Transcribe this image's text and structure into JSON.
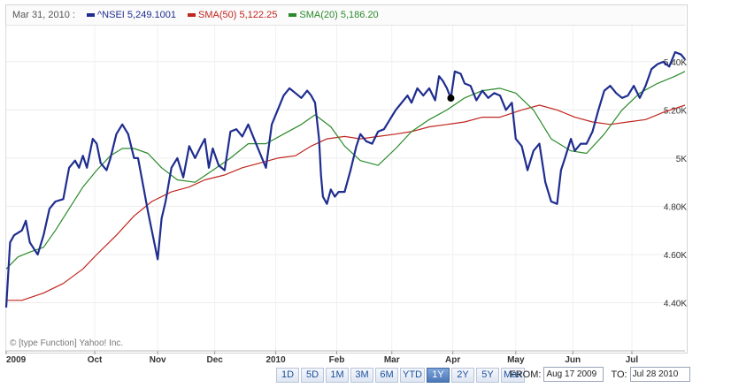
{
  "legend": {
    "date": "Mar 31, 2010 :",
    "items": [
      {
        "name": "^NSEI",
        "value": "5,249.1001",
        "color": "#1f2d8f"
      },
      {
        "name": "SMA(50)",
        "value": "5,122.25",
        "color": "#c0251e"
      },
      {
        "name": "SMA(20)",
        "value": "5,186.20",
        "color": "#2a8a2a"
      }
    ]
  },
  "copyright": "© [type Function] Yahoo! Inc.",
  "range_buttons": [
    {
      "label": "1D",
      "active": false
    },
    {
      "label": "5D",
      "active": false
    },
    {
      "label": "1M",
      "active": false
    },
    {
      "label": "3M",
      "active": false
    },
    {
      "label": "6M",
      "active": false
    },
    {
      "label": "YTD",
      "active": false
    },
    {
      "label": "1Y",
      "active": true
    },
    {
      "label": "2Y",
      "active": false
    },
    {
      "label": "5Y",
      "active": false
    },
    {
      "label": "Max",
      "active": false
    }
  ],
  "date_range": {
    "from_label": "FROM:",
    "from_value": "Aug 17 2009",
    "to_label": "TO:",
    "to_value": "Jul 28 2010"
  },
  "chart_data": {
    "type": "line",
    "title": "",
    "xlabel": "",
    "ylabel": "",
    "ylim": [
      4200,
      5550
    ],
    "grid": true,
    "legend_position": "top",
    "x_tick_labels": [
      "2009",
      "Oct",
      "Nov",
      "Dec",
      "2010",
      "Feb",
      "Mar",
      "Apr",
      "May",
      "Jun",
      "Jul"
    ],
    "y_tick_labels": [
      "4.40K",
      "4.60K",
      "4.80K",
      "5K",
      "5.20K",
      "5.40K"
    ],
    "y_ticks": [
      4400,
      4600,
      4800,
      5000,
      5200,
      5400
    ],
    "marker": {
      "series": "^NSEI",
      "date": "Mar 31, 2010",
      "value": 5249.1
    },
    "series": [
      {
        "name": "^NSEI",
        "color": "#1f2d8f",
        "points": [
          [
            "2009-08-17",
            4380
          ],
          [
            "2009-08-19",
            4650
          ],
          [
            "2009-08-21",
            4680
          ],
          [
            "2009-08-25",
            4700
          ],
          [
            "2009-08-27",
            4740
          ],
          [
            "2009-08-29",
            4650
          ],
          [
            "2009-09-02",
            4600
          ],
          [
            "2009-09-05",
            4680
          ],
          [
            "2009-09-08",
            4790
          ],
          [
            "2009-09-11",
            4820
          ],
          [
            "2009-09-15",
            4830
          ],
          [
            "2009-09-18",
            4960
          ],
          [
            "2009-09-21",
            4990
          ],
          [
            "2009-09-23",
            4960
          ],
          [
            "2009-09-25",
            5010
          ],
          [
            "2009-09-27",
            4960
          ],
          [
            "2009-09-30",
            5080
          ],
          [
            "2009-10-02",
            5060
          ],
          [
            "2009-10-04",
            4980
          ],
          [
            "2009-10-07",
            4950
          ],
          [
            "2009-10-09",
            5000
          ],
          [
            "2009-10-12",
            5100
          ],
          [
            "2009-10-15",
            5140
          ],
          [
            "2009-10-18",
            5100
          ],
          [
            "2009-10-21",
            5000
          ],
          [
            "2009-10-23",
            5000
          ],
          [
            "2009-10-26",
            4870
          ],
          [
            "2009-10-28",
            4780
          ],
          [
            "2009-10-30",
            4700
          ],
          [
            "2009-11-02",
            4580
          ],
          [
            "2009-11-04",
            4750
          ],
          [
            "2009-11-06",
            4820
          ],
          [
            "2009-11-09",
            4960
          ],
          [
            "2009-11-12",
            5000
          ],
          [
            "2009-11-15",
            4920
          ],
          [
            "2009-11-18",
            5050
          ],
          [
            "2009-11-21",
            5000
          ],
          [
            "2009-11-24",
            5050
          ],
          [
            "2009-11-26",
            5080
          ],
          [
            "2009-11-28",
            4960
          ],
          [
            "2009-11-30",
            5040
          ],
          [
            "2009-12-03",
            4970
          ],
          [
            "2009-12-06",
            4950
          ],
          [
            "2009-12-09",
            5110
          ],
          [
            "2009-12-12",
            5120
          ],
          [
            "2009-12-15",
            5090
          ],
          [
            "2009-12-18",
            5140
          ],
          [
            "2009-12-21",
            5080
          ],
          [
            "2009-12-24",
            5020
          ],
          [
            "2009-12-27",
            4960
          ],
          [
            "2009-12-30",
            5140
          ],
          [
            "2010-01-02",
            5200
          ],
          [
            "2010-01-05",
            5260
          ],
          [
            "2010-01-08",
            5290
          ],
          [
            "2010-01-11",
            5270
          ],
          [
            "2010-01-14",
            5250
          ],
          [
            "2010-01-17",
            5280
          ],
          [
            "2010-01-19",
            5260
          ],
          [
            "2010-01-21",
            5230
          ],
          [
            "2010-01-23",
            5080
          ],
          [
            "2010-01-24",
            4930
          ],
          [
            "2010-01-25",
            4840
          ],
          [
            "2010-01-27",
            4810
          ],
          [
            "2010-01-29",
            4870
          ],
          [
            "2010-01-31",
            4840
          ],
          [
            "2010-02-02",
            4860
          ],
          [
            "2010-02-05",
            4860
          ],
          [
            "2010-02-08",
            4950
          ],
          [
            "2010-02-11",
            5050
          ],
          [
            "2010-02-13",
            5100
          ],
          [
            "2010-02-16",
            5070
          ],
          [
            "2010-02-19",
            5060
          ],
          [
            "2010-02-22",
            5110
          ],
          [
            "2010-02-25",
            5120
          ],
          [
            "2010-02-28",
            5160
          ],
          [
            "2010-03-03",
            5200
          ],
          [
            "2010-03-06",
            5230
          ],
          [
            "2010-03-09",
            5260
          ],
          [
            "2010-03-11",
            5230
          ],
          [
            "2010-03-14",
            5290
          ],
          [
            "2010-03-17",
            5260
          ],
          [
            "2010-03-20",
            5290
          ],
          [
            "2010-03-23",
            5240
          ],
          [
            "2010-03-25",
            5340
          ],
          [
            "2010-03-27",
            5320
          ],
          [
            "2010-03-29",
            5290
          ],
          [
            "2010-03-31",
            5249
          ],
          [
            "2010-04-02",
            5360
          ],
          [
            "2010-04-05",
            5350
          ],
          [
            "2010-04-07",
            5310
          ],
          [
            "2010-04-10",
            5300
          ],
          [
            "2010-04-13",
            5240
          ],
          [
            "2010-04-16",
            5280
          ],
          [
            "2010-04-19",
            5250
          ],
          [
            "2010-04-22",
            5270
          ],
          [
            "2010-04-25",
            5260
          ],
          [
            "2010-04-28",
            5200
          ],
          [
            "2010-05-01",
            5230
          ],
          [
            "2010-05-03",
            5080
          ],
          [
            "2010-05-06",
            5050
          ],
          [
            "2010-05-09",
            4950
          ],
          [
            "2010-05-12",
            5030
          ],
          [
            "2010-05-15",
            5060
          ],
          [
            "2010-05-18",
            4900
          ],
          [
            "2010-05-21",
            4820
          ],
          [
            "2010-05-24",
            4810
          ],
          [
            "2010-05-26",
            4950
          ],
          [
            "2010-05-28",
            5000
          ],
          [
            "2010-05-31",
            5080
          ],
          [
            "2010-06-02",
            5030
          ],
          [
            "2010-06-05",
            5060
          ],
          [
            "2010-06-08",
            5060
          ],
          [
            "2010-06-11",
            5110
          ],
          [
            "2010-06-14",
            5200
          ],
          [
            "2010-06-17",
            5280
          ],
          [
            "2010-06-20",
            5300
          ],
          [
            "2010-06-23",
            5270
          ],
          [
            "2010-06-26",
            5250
          ],
          [
            "2010-06-29",
            5260
          ],
          [
            "2010-07-02",
            5300
          ],
          [
            "2010-07-05",
            5250
          ],
          [
            "2010-07-08",
            5300
          ],
          [
            "2010-07-11",
            5370
          ],
          [
            "2010-07-14",
            5390
          ],
          [
            "2010-07-17",
            5400
          ],
          [
            "2010-07-20",
            5380
          ],
          [
            "2010-07-23",
            5440
          ],
          [
            "2010-07-26",
            5430
          ],
          [
            "2010-07-28",
            5410
          ]
        ]
      },
      {
        "name": "SMA(50)",
        "color": "#c0251e",
        "points": [
          [
            "2009-08-17",
            4410
          ],
          [
            "2009-08-25",
            4410
          ],
          [
            "2009-09-05",
            4440
          ],
          [
            "2009-09-15",
            4480
          ],
          [
            "2009-09-25",
            4540
          ],
          [
            "2009-10-02",
            4600
          ],
          [
            "2009-10-12",
            4680
          ],
          [
            "2009-10-21",
            4760
          ],
          [
            "2009-10-30",
            4820
          ],
          [
            "2009-11-09",
            4860
          ],
          [
            "2009-11-18",
            4880
          ],
          [
            "2009-11-26",
            4910
          ],
          [
            "2009-12-06",
            4930
          ],
          [
            "2009-12-15",
            4960
          ],
          [
            "2009-12-24",
            4980
          ],
          [
            "2010-01-02",
            5000
          ],
          [
            "2010-01-11",
            5010
          ],
          [
            "2010-01-19",
            5050
          ],
          [
            "2010-01-27",
            5080
          ],
          [
            "2010-02-05",
            5090
          ],
          [
            "2010-02-13",
            5080
          ],
          [
            "2010-02-22",
            5090
          ],
          [
            "2010-03-03",
            5100
          ],
          [
            "2010-03-11",
            5110
          ],
          [
            "2010-03-20",
            5130
          ],
          [
            "2010-03-29",
            5140
          ],
          [
            "2010-04-07",
            5150
          ],
          [
            "2010-04-16",
            5170
          ],
          [
            "2010-04-25",
            5170
          ],
          [
            "2010-05-06",
            5200
          ],
          [
            "2010-05-15",
            5220
          ],
          [
            "2010-05-24",
            5200
          ],
          [
            "2010-06-02",
            5170
          ],
          [
            "2010-06-11",
            5150
          ],
          [
            "2010-06-20",
            5140
          ],
          [
            "2010-06-29",
            5150
          ],
          [
            "2010-07-08",
            5160
          ],
          [
            "2010-07-17",
            5190
          ],
          [
            "2010-07-28",
            5220
          ]
        ]
      },
      {
        "name": "SMA(20)",
        "color": "#2a8a2a",
        "points": [
          [
            "2009-08-17",
            4540
          ],
          [
            "2009-08-23",
            4590
          ],
          [
            "2009-08-29",
            4610
          ],
          [
            "2009-09-05",
            4630
          ],
          [
            "2009-09-11",
            4700
          ],
          [
            "2009-09-18",
            4790
          ],
          [
            "2009-09-25",
            4880
          ],
          [
            "2009-10-02",
            4950
          ],
          [
            "2009-10-09",
            5010
          ],
          [
            "2009-10-15",
            5040
          ],
          [
            "2009-10-21",
            5040
          ],
          [
            "2009-10-28",
            5020
          ],
          [
            "2009-11-04",
            4960
          ],
          [
            "2009-11-12",
            4910
          ],
          [
            "2009-11-21",
            4900
          ],
          [
            "2009-11-30",
            4950
          ],
          [
            "2009-12-09",
            5000
          ],
          [
            "2009-12-18",
            5060
          ],
          [
            "2009-12-27",
            5060
          ],
          [
            "2010-01-05",
            5100
          ],
          [
            "2010-01-14",
            5140
          ],
          [
            "2010-01-21",
            5180
          ],
          [
            "2010-01-29",
            5130
          ],
          [
            "2010-02-05",
            5050
          ],
          [
            "2010-02-13",
            4990
          ],
          [
            "2010-02-22",
            4970
          ],
          [
            "2010-03-03",
            5040
          ],
          [
            "2010-03-11",
            5110
          ],
          [
            "2010-03-20",
            5160
          ],
          [
            "2010-03-29",
            5200
          ],
          [
            "2010-04-07",
            5250
          ],
          [
            "2010-04-16",
            5280
          ],
          [
            "2010-04-25",
            5290
          ],
          [
            "2010-05-03",
            5270
          ],
          [
            "2010-05-12",
            5200
          ],
          [
            "2010-05-21",
            5080
          ],
          [
            "2010-05-31",
            5030
          ],
          [
            "2010-06-08",
            5020
          ],
          [
            "2010-06-17",
            5100
          ],
          [
            "2010-06-26",
            5200
          ],
          [
            "2010-07-05",
            5270
          ],
          [
            "2010-07-14",
            5310
          ],
          [
            "2010-07-23",
            5340
          ],
          [
            "2010-07-28",
            5360
          ]
        ]
      }
    ]
  }
}
